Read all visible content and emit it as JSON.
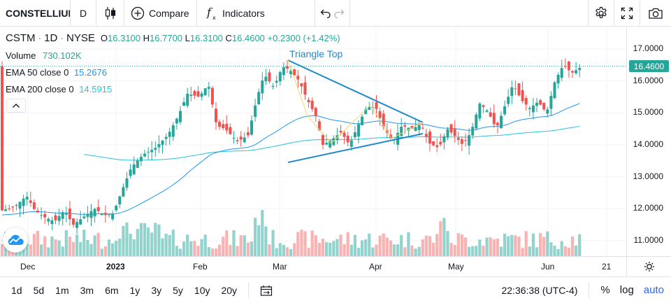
{
  "toolbar": {
    "symbol": "CONSTELLIUM",
    "interval": "D",
    "compare_label": "Compare",
    "indicators_label": "Indicators"
  },
  "legend": {
    "ticker": "CSTM",
    "interval": "1D",
    "exchange": "NYSE",
    "sep": "·",
    "o_label": "O",
    "o_value": "16.3100",
    "h_label": "H",
    "h_value": "16.7700",
    "l_label": "L",
    "l_value": "16.3100",
    "c_label": "C",
    "c_value": "16.4600",
    "change": "+0.2300 (+1.42%)"
  },
  "indicators": {
    "volume_label": "Volume",
    "volume_value": "730.102K",
    "ema50_label": "EMA 50 close 0",
    "ema50_value": "15.2676",
    "ema200_label": "EMA 200 close 0",
    "ema200_value": "14.5915"
  },
  "annotation": {
    "pattern_label": "Triangle Top"
  },
  "price_axis": {
    "ticks": [
      "17.0000",
      "16.0000",
      "15.0000",
      "14.0000",
      "13.0000",
      "12.0000",
      "11.0000"
    ],
    "last_price": "16.4600"
  },
  "time_axis": {
    "labels": [
      "Dec",
      "2023",
      "Feb",
      "Mar",
      "Apr",
      "May",
      "Jun",
      "21"
    ]
  },
  "bottombar": {
    "ranges": [
      "1d",
      "5d",
      "1m",
      "3m",
      "6m",
      "1y",
      "3y",
      "5y",
      "10y",
      "20y"
    ],
    "clock": "22:36:38 (UTC-4)",
    "percent": "%",
    "log": "log",
    "auto": "auto"
  },
  "colors": {
    "up": "#26a69a",
    "down": "#ef5350",
    "ema50": "#2196f3",
    "ema200": "#26c6da",
    "accent": "#2962ff"
  },
  "chart_data": {
    "type": "candlestick",
    "ylim": [
      10.5,
      17.5
    ],
    "x": [
      "Dec",
      "2023",
      "Feb",
      "Mar",
      "Apr",
      "May",
      "Jun"
    ],
    "last_price": 16.46,
    "overlays": [
      {
        "name": "EMA 50 close 0",
        "last": 15.2676
      },
      {
        "name": "EMA 200 close 0",
        "last": 14.5915
      }
    ]
  }
}
